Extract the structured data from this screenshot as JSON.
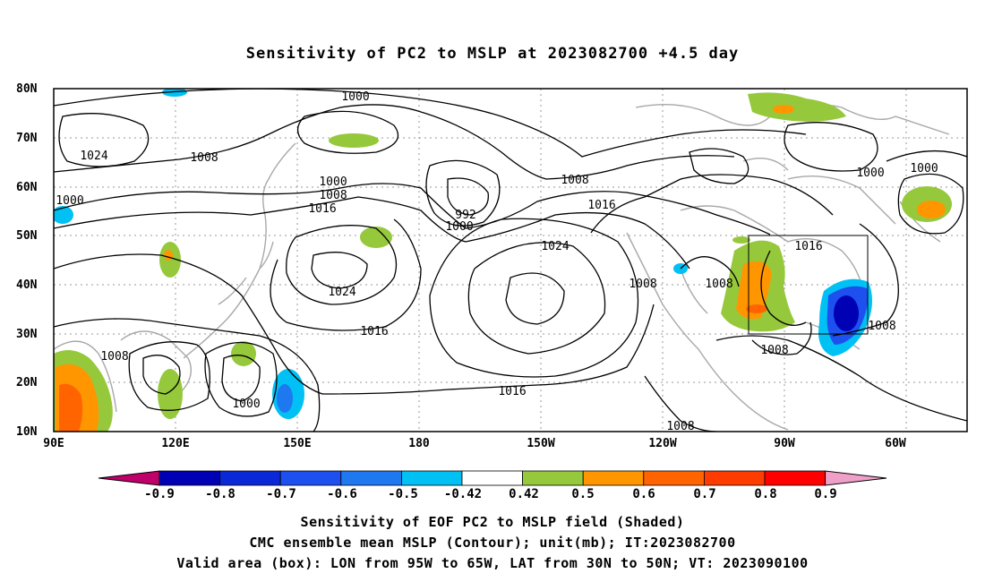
{
  "title": "Sensitivity of PC2 to MSLP at 2023082700 +4.5 day",
  "lat_labels": [
    "80N",
    "70N",
    "60N",
    "50N",
    "40N",
    "30N",
    "20N",
    "10N"
  ],
  "lon_labels": [
    "90E",
    "120E",
    "150E",
    "180",
    "150W",
    "120W",
    "90W",
    "60W"
  ],
  "contour_labels": [
    "1000",
    "1024",
    "1008",
    "1000",
    "1000",
    "1008",
    "1016",
    "992",
    "1000",
    "1008",
    "1016",
    "1024",
    "1024",
    "1016",
    "1008",
    "1008",
    "1016",
    "1000",
    "1000",
    "1008",
    "1008",
    "1016",
    "1000",
    "1008",
    "1008"
  ],
  "colorbar": {
    "labels": [
      "-0.9",
      "-0.8",
      "-0.7",
      "-0.6",
      "-0.5",
      "-0.42",
      "0.42",
      "0.5",
      "0.6",
      "0.7",
      "0.8",
      "0.9"
    ],
    "colors": [
      "#0000b4",
      "#0a28d8",
      "#1e50f0",
      "#1e78f0",
      "#00c0f4",
      "#ffffff",
      "#96c83c",
      "#ff9600",
      "#ff6400",
      "#ff3c00",
      "#ff0000"
    ],
    "low_extend_color": "#c0006a",
    "high_extend_color": "#f0a0c8"
  },
  "valid_box": {
    "lon": [
      "95W",
      "65W"
    ],
    "lat": [
      "30N",
      "50N"
    ]
  },
  "captions": [
    "Sensitivity of EOF PC2 to MSLP field (Shaded)",
    "CMC ensemble mean MSLP (Contour); unit(mb); IT:2023082700",
    "Valid area (box): LON from 95W to 65W, LAT from 30N to 50N; VT: 2023090100"
  ]
}
